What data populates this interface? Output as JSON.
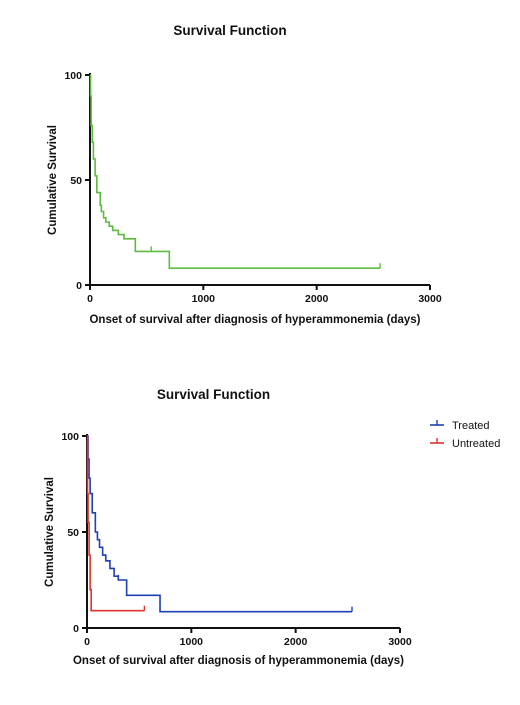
{
  "chart_data": [
    {
      "type": "line",
      "subtype": "kaplan-meier-step",
      "title": "Survival Function",
      "xlabel": "Onset of survival after diagnosis of hyperammonemia (days)",
      "ylabel": "Cumulative Survival",
      "xlim": [
        0,
        3000
      ],
      "ylim": [
        0,
        100
      ],
      "xticks": [
        0,
        1000,
        2000,
        3000
      ],
      "yticks": [
        0,
        50,
        100
      ],
      "grid": false,
      "legend": "none",
      "series": [
        {
          "color": "#5dbb3f",
          "x": [
            0,
            5,
            10,
            20,
            30,
            45,
            60,
            90,
            100,
            120,
            140,
            170,
            200,
            250,
            300,
            400,
            700,
            2560
          ],
          "y": [
            100,
            90,
            76,
            68,
            60,
            52,
            44,
            38,
            35,
            32,
            30,
            28,
            26,
            24,
            22,
            16,
            8,
            8
          ],
          "censored": [
            [
              540,
              16
            ],
            [
              2560,
              8
            ]
          ]
        }
      ]
    },
    {
      "type": "line",
      "subtype": "kaplan-meier-step",
      "title": "Survival Function",
      "xlabel": "Onset of survival after diagnosis of hyperammonemia (days)",
      "ylabel": "Cumulative Survival",
      "xlim": [
        0,
        3000
      ],
      "ylim": [
        0,
        100
      ],
      "xticks": [
        0,
        1000,
        2000,
        3000
      ],
      "yticks": [
        0,
        50,
        100
      ],
      "grid": false,
      "legend": "top-right",
      "series": [
        {
          "name": "Treated",
          "color": "#1f3fb5",
          "x": [
            0,
            10,
            20,
            30,
            50,
            80,
            100,
            120,
            150,
            180,
            220,
            260,
            300,
            380,
            700,
            2540
          ],
          "y": [
            100,
            88,
            78,
            70,
            60,
            50,
            46,
            42,
            38,
            35,
            31,
            27,
            25,
            17,
            8.5,
            8.5
          ],
          "censored": [
            [
              300,
              25
            ],
            [
              2540,
              8.5
            ]
          ]
        },
        {
          "name": "Untreated",
          "color": "#e0332b",
          "x": [
            0,
            5,
            10,
            20,
            30,
            40,
            550
          ],
          "y": [
            100,
            70,
            55,
            38,
            20,
            9,
            9
          ],
          "censored": [
            [
              550,
              9
            ]
          ]
        }
      ]
    }
  ]
}
